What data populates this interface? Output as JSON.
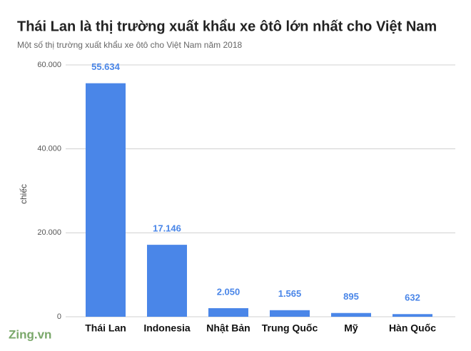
{
  "chart_data": {
    "type": "bar",
    "title": "Thái Lan là thị trường xuất khẩu xe ôtô lớn nhất cho Việt Nam",
    "subtitle": "Một số thị trường xuất khẩu xe ôtô cho Việt Nam năm 2018",
    "y_label": "chiếc",
    "categories": [
      "Thái Lan",
      "Indonesia",
      "Nhật Bản",
      "Trung Quốc",
      "Mỹ",
      "Hàn Quốc"
    ],
    "values": [
      55634,
      17146,
      2050,
      1565,
      895,
      632
    ],
    "value_labels": [
      "55.634",
      "17.146",
      "2.050",
      "1.565",
      "895",
      "632"
    ],
    "color": "#4a86e8",
    "ylim": [
      0,
      60000
    ],
    "yticks": [
      0,
      {
        "value": 20000,
        "label": "20.000"
      },
      {
        "value": 40000,
        "label": "40.000"
      },
      {
        "value": 60000,
        "label": "60.000"
      }
    ],
    "grid": true,
    "watermark": "Zing.vn"
  }
}
